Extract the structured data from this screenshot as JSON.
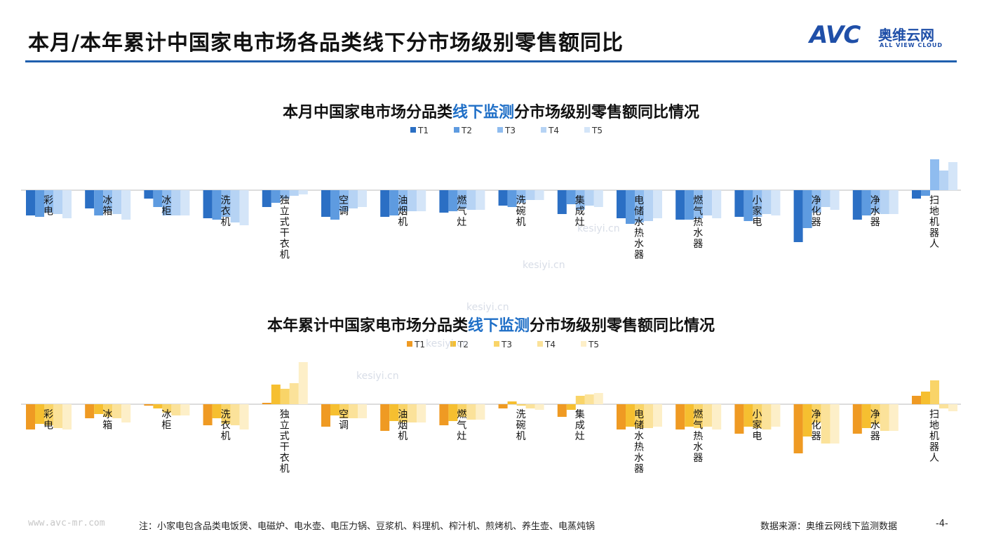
{
  "header": {
    "title": "本月/本年累计中国家电市场各品类线下分市场级别零售额同比",
    "logo_mark": "AVC",
    "logo_cn": "奥维云网",
    "logo_en": "ALL VIEW CLOUD"
  },
  "colors": {
    "accent": "#1f5fae",
    "highlight": "#1f6fc7",
    "blue_series": [
      "#2b6fc4",
      "#5e9be0",
      "#8fbcef",
      "#b6d3f4",
      "#d4e5f8"
    ],
    "orange_series": [
      "#ef9a23",
      "#f6bf30",
      "#f9d468",
      "#fbe29a",
      "#fdefc8"
    ]
  },
  "chart_data": [
    {
      "type": "bar",
      "title_parts": [
        "本月中国家电市场分品类",
        "线下监测",
        "分市场级别零售额同比情况"
      ],
      "categories": [
        "彩电",
        "冰箱",
        "冰柜",
        "洗衣机",
        "独立式干衣机",
        "空调",
        "油烟机",
        "燃气灶",
        "洗碗机",
        "集成灶",
        "电储水热水器",
        "燃气热水器",
        "小家电",
        "净化器",
        "净水器",
        "扫地机器人"
      ],
      "legend": [
        "T1",
        "T2",
        "T3",
        "T4",
        "T5"
      ],
      "legend_position": "top-center",
      "grid": false,
      "series": [
        {
          "name": "T1",
          "values": [
            -18,
            -13,
            -6,
            -20,
            -12,
            -19,
            -19,
            -16,
            -11,
            -17,
            -20,
            -21,
            -19,
            -37,
            -21,
            -6
          ]
        },
        {
          "name": "T2",
          "values": [
            -19,
            -18,
            -12,
            -21,
            -9,
            -21,
            -18,
            -15,
            -12,
            -10,
            -24,
            -21,
            -22,
            -27,
            -18,
            -4
          ]
        },
        {
          "name": "T3",
          "values": [
            -16,
            -15,
            -18,
            -19,
            -6,
            -15,
            -15,
            -13,
            -9,
            -14,
            -23,
            -20,
            -19,
            -16,
            -16,
            22
          ]
        },
        {
          "name": "T4",
          "values": [
            -17,
            -17,
            -18,
            -23,
            -4,
            -13,
            -15,
            -14,
            -7,
            -11,
            -22,
            -18,
            -17,
            -12,
            -17,
            14
          ]
        },
        {
          "name": "T5",
          "values": [
            -20,
            -21,
            -18,
            -25,
            -3,
            -12,
            -15,
            -14,
            -7,
            -12,
            -20,
            -20,
            -18,
            -14,
            -17,
            20
          ]
        }
      ]
    },
    {
      "type": "bar",
      "title_parts": [
        "本年累计中国家电市场分品类",
        "线下监测",
        "分市场级别零售额同比情况"
      ],
      "categories": [
        "彩电",
        "冰箱",
        "冰柜",
        "洗衣机",
        "独立式干衣机",
        "空调",
        "油烟机",
        "燃气灶",
        "洗碗机",
        "集成灶",
        "电储水热水器",
        "燃气热水器",
        "小家电",
        "净化器",
        "净水器",
        "扫地机器人"
      ],
      "legend": [
        "T1",
        "T2",
        "T3",
        "T4",
        "T5"
      ],
      "legend_position": "top-center",
      "grid": false,
      "series": [
        {
          "name": "T1",
          "values": [
            -18,
            -10,
            -1,
            -15,
            1,
            -16,
            -19,
            -15,
            -3,
            -9,
            -18,
            -18,
            -21,
            -35,
            -21,
            6
          ]
        },
        {
          "name": "T2",
          "values": [
            -14,
            -7,
            -3,
            -10,
            14,
            -8,
            -12,
            -12,
            2,
            -4,
            -16,
            -16,
            -16,
            -23,
            -17,
            9
          ]
        },
        {
          "name": "T3",
          "values": [
            -15,
            -9,
            -6,
            -14,
            11,
            -10,
            -13,
            -9,
            -1,
            6,
            -17,
            -17,
            -17,
            -13,
            -14,
            17
          ]
        },
        {
          "name": "T4",
          "values": [
            -17,
            -10,
            -8,
            -15,
            15,
            -10,
            -13,
            -11,
            -3,
            7,
            -17,
            -16,
            -18,
            -28,
            -19,
            -3
          ]
        },
        {
          "name": "T5",
          "values": [
            -18,
            -13,
            -8,
            -18,
            30,
            -10,
            -13,
            -11,
            -4,
            8,
            -16,
            -18,
            -16,
            -28,
            -19,
            -5
          ]
        }
      ]
    }
  ],
  "watermarks": [
    "kesiyi.cn",
    "kesiyi.cn",
    "kesiyi.cn",
    "kesiyi.cn",
    "kesiyi.cn"
  ],
  "footer": {
    "website": "www.avc-mr.com",
    "note": "注：小家电包含品类电饭煲、电磁炉、电水壶、电压力锅、豆浆机、料理机、榨汁机、煎烤机、养生壶、电蒸炖锅",
    "source": "数据来源：奥维云网线下监测数据",
    "page": "-4-"
  }
}
